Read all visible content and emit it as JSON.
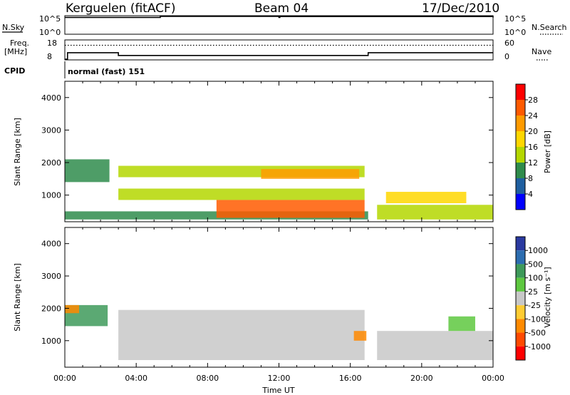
{
  "header": {
    "station": "Kerguelen (fitACF)",
    "beam": "Beam 04",
    "date": "17/Dec/2010"
  },
  "noise_panel": {
    "left_label": "N.Sky",
    "left_ticks": [
      "10^5",
      "10^0"
    ],
    "right_label": "N.Search",
    "right_ticks": [
      "10^5",
      "10^0"
    ]
  },
  "freq_panel": {
    "left_label_1": "Freq.",
    "left_label_2": "[MHz]",
    "left_ticks": [
      "18",
      "8"
    ],
    "right_label": "Nave",
    "right_ticks": [
      "60",
      "0"
    ]
  },
  "cpid_panel": {
    "label": "CPID",
    "text": "normal (fast) 151"
  },
  "x_axis": {
    "label": "Time UT",
    "ticks": [
      "00:00",
      "04:00",
      "08:00",
      "12:00",
      "16:00",
      "20:00",
      "00:00"
    ]
  },
  "power_panel": {
    "y_label": "Slant Range [km]",
    "y_ticks": [
      "4000",
      "3000",
      "2000",
      "1000"
    ],
    "colorbar_label": "Power [dB]",
    "colorbar_ticks": [
      "28",
      "24",
      "20",
      "16",
      "12",
      "8",
      "4"
    ],
    "colorbar_colors": [
      "#ff0000",
      "#ff5a00",
      "#ff9b00",
      "#ffd700",
      "#b4d700",
      "#2f8c4c",
      "#1f5fa0",
      "#0000ff"
    ]
  },
  "velocity_panel": {
    "y_label": "Slant Range [km]",
    "y_ticks": [
      "4000",
      "3000",
      "2000",
      "1000"
    ],
    "colorbar_label": "Velocity [m s⁻¹]",
    "colorbar_ticks": [
      "1000",
      "500",
      "100",
      "25",
      "-25",
      "-100",
      "-500",
      "-1000"
    ],
    "colorbar_colors": [
      "#2a3aa0",
      "#2c6db0",
      "#3e9a5a",
      "#5ec840",
      "#c8c8c8",
      "#ffcc33",
      "#ff8a00",
      "#ff4a00",
      "#ff0000"
    ]
  },
  "chart_data": [
    {
      "type": "line",
      "title": "Kerguelen (fitACF)",
      "subtitle": "Beam 04",
      "series": [
        {
          "name": "N.Sky",
          "x_hours": [
            0,
            5.3,
            5.35,
            12,
            12.05,
            24
          ],
          "values": [
            50000,
            50000,
            100000,
            50000,
            90000,
            50000
          ]
        },
        {
          "name": "Freq.",
          "x_hours": [
            0,
            0.15,
            2.9,
            3.0,
            16.95,
            17.0,
            24
          ],
          "values": [
            8,
            11.5,
            11.5,
            10,
            10,
            11.5,
            11.5
          ]
        },
        {
          "name": "Nave",
          "x_hours": [
            0,
            24
          ],
          "values": [
            45,
            45
          ]
        }
      ],
      "xlim": [
        0,
        24
      ],
      "xlabel": "Time UT"
    },
    {
      "type": "heatmap",
      "quantity": "Power",
      "unit": "dB",
      "ylabel": "Slant Range [km]",
      "xlabel": "Time UT",
      "ylim": [
        180,
        4500
      ],
      "xlim": [
        0,
        24
      ],
      "colorbar_ticks": [
        4,
        8,
        12,
        16,
        20,
        24,
        28
      ],
      "regions": [
        {
          "t0": 0.0,
          "t1": 2.5,
          "r0": 1400,
          "r1": 2100,
          "value": 10
        },
        {
          "t0": 0.0,
          "t1": 17.0,
          "r0": 250,
          "r1": 500,
          "value": 8
        },
        {
          "t0": 3.0,
          "t1": 16.8,
          "r0": 1550,
          "r1": 1900,
          "value": 14
        },
        {
          "t0": 11.0,
          "t1": 16.5,
          "r0": 1500,
          "r1": 1800,
          "value": 20
        },
        {
          "t0": 3.0,
          "t1": 16.8,
          "r0": 850,
          "r1": 1200,
          "value": 12
        },
        {
          "t0": 8.5,
          "t1": 16.8,
          "r0": 300,
          "r1": 850,
          "value": 24
        },
        {
          "t0": 17.5,
          "t1": 24.0,
          "r0": 250,
          "r1": 700,
          "value": 14
        },
        {
          "t0": 18.0,
          "t1": 22.5,
          "r0": 750,
          "r1": 1100,
          "value": 18
        }
      ]
    },
    {
      "type": "heatmap",
      "quantity": "Velocity",
      "unit": "m s^-1",
      "ylabel": "Slant Range [km]",
      "xlabel": "Time UT",
      "ylim": [
        180,
        4500
      ],
      "xlim": [
        0,
        24
      ],
      "colorbar_ticks": [
        1000,
        500,
        100,
        25,
        -25,
        -100,
        -500,
        -1000
      ],
      "regions": [
        {
          "t0": 0.0,
          "t1": 2.4,
          "r0": 1450,
          "r1": 2100,
          "value": 150
        },
        {
          "t0": 0.0,
          "t1": 0.8,
          "r0": 1850,
          "r1": 2100,
          "value": -300
        },
        {
          "t0": 3.0,
          "t1": 16.8,
          "r0": 400,
          "r1": 1950,
          "value": 0
        },
        {
          "t0": 16.2,
          "t1": 16.9,
          "r0": 1000,
          "r1": 1300,
          "value": -400
        },
        {
          "t0": 17.5,
          "t1": 24.0,
          "r0": 400,
          "r1": 1300,
          "value": 0
        },
        {
          "t0": 21.5,
          "t1": 23.0,
          "r0": 1300,
          "r1": 1750,
          "value": 60
        }
      ]
    }
  ]
}
